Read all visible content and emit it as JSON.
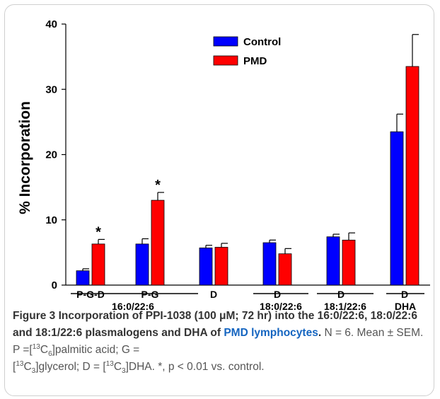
{
  "chart_data": {
    "type": "bar",
    "ylabel": "% Incorporation",
    "ylim": [
      0,
      40
    ],
    "yticks": [
      0,
      10,
      20,
      30,
      40
    ],
    "legend_position": "top-center",
    "grid": false,
    "categories": [
      "P-G-D",
      "P-G",
      "D",
      "D",
      "D",
      "D"
    ],
    "groups": [
      {
        "label": "16:0/22:6",
        "category_indices": [
          0,
          1,
          2
        ]
      },
      {
        "label": "18:0/22:6",
        "category_indices": [
          3
        ]
      },
      {
        "label": "18:1/22:6",
        "category_indices": [
          4
        ]
      },
      {
        "label": "DHA",
        "category_indices": [
          5
        ]
      }
    ],
    "series": [
      {
        "name": "Control",
        "color": "#0000ff",
        "values": [
          2.2,
          6.3,
          5.7,
          6.5,
          7.4,
          23.5
        ],
        "errors": [
          0.3,
          0.8,
          0.4,
          0.4,
          0.4,
          2.7
        ]
      },
      {
        "name": "PMD",
        "color": "#ff0000",
        "values": [
          6.3,
          13.0,
          5.8,
          4.8,
          6.9,
          33.5
        ],
        "errors": [
          0.7,
          1.2,
          0.6,
          0.8,
          1.1,
          4.9
        ]
      }
    ],
    "significance": [
      {
        "category_index": 0,
        "series": "PMD",
        "label": "*"
      },
      {
        "category_index": 1,
        "series": "PMD",
        "label": "*"
      }
    ]
  },
  "caption": {
    "figure_label": "Figure 3",
    "title_part1": " Incorporation of PPI-1038 (100 μM; 72 hr) into the 16:0/22:6, 18:0/22:6 and 18:1/22:6 plasmalogens and DHA of ",
    "title_part2": "PMD lymphocytes",
    "title_end": ".",
    "n": " N = 6. Mean ± SEM. P =[",
    "p_iso": "13",
    "p_c": "C",
    "p_sub": "6",
    "p_name": "]palmitic acid; G =",
    "g_open": "[",
    "g_iso": "13",
    "g_c": "C",
    "g_sub": "3",
    "g_name": "]glycerol; D = [",
    "d_iso": "13",
    "d_c": "C",
    "d_sub": "3",
    "d_name": "]DHA. *, p < 0.01 vs. control."
  }
}
